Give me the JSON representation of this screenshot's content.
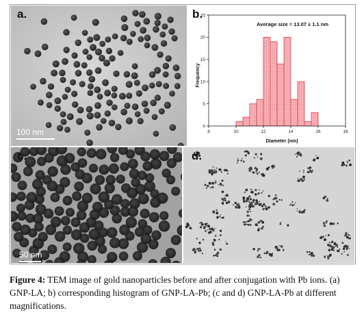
{
  "panels": {
    "a": {
      "label": "a.",
      "scale": "100 nm"
    },
    "b": {
      "label": "b."
    },
    "c": {
      "label": "c.",
      "scale": "50 nm"
    },
    "d": {
      "label": "d."
    }
  },
  "chart_data": {
    "type": "bar",
    "annotation": "Average size = 13.07 ± 1.1 nm",
    "xlabel": "Diameter (nm)",
    "ylabel": "Frequency",
    "xlim": [
      8,
      18
    ],
    "ylim": [
      0,
      25
    ],
    "xticks": [
      8,
      10,
      12,
      14,
      16,
      18
    ],
    "yticks": [
      0,
      5,
      10,
      15,
      20,
      25
    ],
    "bin_width": 0.5,
    "bins": [
      {
        "x": 10.0,
        "value": 1
      },
      {
        "x": 10.5,
        "value": 2
      },
      {
        "x": 11.0,
        "value": 5
      },
      {
        "x": 11.5,
        "value": 6
      },
      {
        "x": 12.0,
        "value": 20
      },
      {
        "x": 12.5,
        "value": 19
      },
      {
        "x": 13.0,
        "value": 14
      },
      {
        "x": 13.5,
        "value": 20
      },
      {
        "x": 14.0,
        "value": 6
      },
      {
        "x": 14.5,
        "value": 10
      },
      {
        "x": 15.0,
        "value": 1
      },
      {
        "x": 15.5,
        "value": 3
      }
    ],
    "colors": {
      "fill": "#f4a3a8",
      "edge": "#e23b47"
    }
  },
  "caption": {
    "label": "Figure 4:",
    "text": " TEM image of gold nanoparticles before and after conjugation with Pb ions. (a) GNP-LA; b) corresponding histogram of GNP-LA-Pb; (c and d) GNP-LA-Pb at different magnifications."
  }
}
